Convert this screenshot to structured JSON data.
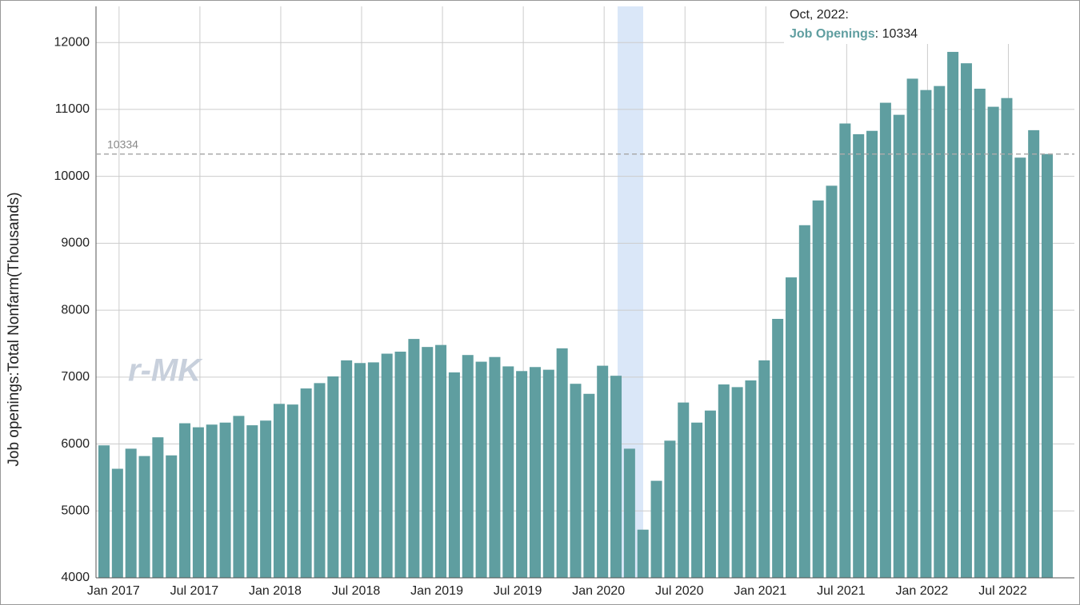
{
  "chart_data": {
    "type": "bar",
    "y_label": "Job openings:Total Nonfarm(Thousands)",
    "watermark": "r-MK",
    "categories": [
      null,
      "Jan 2017",
      null,
      null,
      null,
      null,
      null,
      "Jul 2017",
      null,
      null,
      null,
      null,
      null,
      "Jan 2018",
      null,
      null,
      null,
      null,
      null,
      "Jul 2018",
      null,
      null,
      null,
      null,
      null,
      "Jan 2019",
      null,
      null,
      null,
      null,
      null,
      "Jul 2019",
      null,
      null,
      null,
      null,
      null,
      "Jan 2020",
      null,
      null,
      null,
      null,
      null,
      "Jul 2020",
      null,
      null,
      null,
      null,
      null,
      "Jan 2021",
      null,
      null,
      null,
      null,
      null,
      "Jul 2021",
      null,
      null,
      null,
      null,
      null,
      "Jan 2022",
      null,
      null,
      null,
      null,
      null,
      "Jul 2022",
      null,
      null,
      null
    ],
    "series": [
      {
        "name": "Job Openings",
        "color": "#5f9ea0",
        "values": [
          5980,
          5630,
          5930,
          5820,
          6100,
          5830,
          6310,
          6250,
          6290,
          6320,
          6420,
          6280,
          6350,
          6600,
          6590,
          6830,
          6910,
          7010,
          7250,
          7210,
          7220,
          7350,
          7380,
          7570,
          7450,
          7480,
          7070,
          7330,
          7230,
          7300,
          7160,
          7090,
          7150,
          7110,
          7430,
          6900,
          6750,
          7170,
          7020,
          5930,
          4720,
          5450,
          6050,
          6620,
          6320,
          6500,
          6890,
          6850,
          6950,
          7250,
          7870,
          8490,
          9270,
          9640,
          9860,
          10790,
          10630,
          10680,
          11100,
          10920,
          11460,
          11290,
          11350,
          11860,
          11690,
          11310,
          11040,
          11170,
          10280,
          10690,
          10334
        ]
      }
    ],
    "ylim": [
      4000,
      12540
    ],
    "yticks": [
      4000,
      5000,
      6000,
      7000,
      8000,
      9000,
      10000,
      11000,
      12000
    ],
    "grid": true,
    "reference_line": 10334,
    "tooltip": {
      "date": "Oct, 2022:",
      "separator": ": "
    }
  }
}
